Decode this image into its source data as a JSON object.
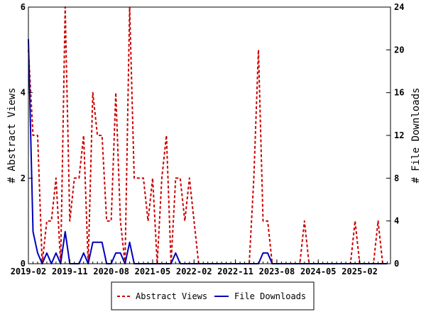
{
  "chart_data": {
    "type": "line",
    "title": "",
    "xlabel": "",
    "ylabel": "# Abstract Views",
    "y2label": "# File Downloads",
    "x_start": "2019-02",
    "x_ticks": [
      "2019-02",
      "2019-11",
      "2020-08",
      "2021-05",
      "2022-02",
      "2022-11",
      "2023-08",
      "2024-05",
      "2025-02"
    ],
    "ylim": [
      0,
      6
    ],
    "y_ticks": [
      "0",
      "2",
      "4",
      "6"
    ],
    "y2lim": [
      0,
      24
    ],
    "y2_ticks": [
      "0",
      "4",
      "8",
      "12",
      "16",
      "20",
      "24"
    ],
    "legend_position": "bottom",
    "series": [
      {
        "name": "Abstract Views",
        "axis": "left",
        "color": "#cc0000",
        "style": "dashed",
        "values": [
          5,
          3,
          3,
          0,
          1,
          1,
          2,
          0,
          6,
          1,
          2,
          2,
          3,
          0,
          4,
          3,
          3,
          1,
          1,
          4,
          1,
          0,
          6,
          2,
          2,
          2,
          1,
          2,
          0,
          2,
          3,
          0,
          2,
          2,
          1,
          2,
          1,
          0,
          0,
          0,
          0,
          0,
          0,
          0,
          0,
          0,
          0,
          0,
          0,
          2,
          5,
          1,
          1,
          0,
          0,
          0,
          0,
          0,
          0,
          0,
          1,
          0,
          0,
          0,
          0,
          0,
          0,
          0,
          0,
          0,
          0,
          1,
          0,
          0,
          0,
          0,
          1,
          0,
          0
        ]
      },
      {
        "name": "File Downloads",
        "axis": "right",
        "color": "#0000bb",
        "style": "solid",
        "values": [
          21,
          3,
          1,
          0,
          1,
          0,
          1,
          0,
          3,
          0,
          0,
          0,
          1,
          0,
          2,
          2,
          2,
          0,
          0,
          1,
          1,
          0,
          2,
          0,
          0,
          0,
          0,
          0,
          0,
          0,
          0,
          0,
          1,
          0,
          0,
          0,
          0,
          0,
          0,
          0,
          0,
          0,
          0,
          0,
          0,
          0,
          0,
          0,
          0,
          0,
          0,
          1,
          1,
          0,
          0,
          0,
          0,
          0,
          0,
          0,
          0,
          0,
          0,
          0,
          0,
          0,
          0,
          0,
          0,
          0,
          0,
          0,
          0,
          0,
          0,
          0,
          0,
          0,
          0
        ]
      }
    ]
  }
}
